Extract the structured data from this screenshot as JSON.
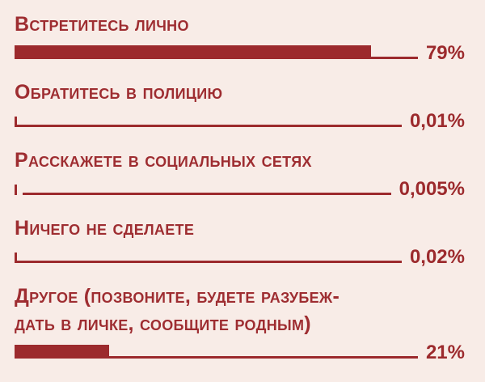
{
  "page": {
    "background_color": "#f8ece7",
    "accent_color": "#9c2a2d"
  },
  "chart_data": {
    "type": "bar",
    "orientation": "horizontal",
    "title": "",
    "xlabel": "",
    "ylabel": "",
    "xlim": [
      0,
      100
    ],
    "grid": false,
    "legend": false,
    "bar_color": "#9c2a2d",
    "categories": [
      "Встретитесь лично",
      "Обратитесь в полицию",
      "Расскажете в социальных сетях",
      "Ничего не сделаете",
      "Другое (позвоните, будете разубеж-\nдать в личке, сообщите родным)"
    ],
    "values": [
      79,
      0.01,
      0.005,
      0.02,
      21
    ],
    "value_labels": [
      "79%",
      "0,01%",
      "0,005%",
      "0,02%",
      "21%"
    ]
  }
}
